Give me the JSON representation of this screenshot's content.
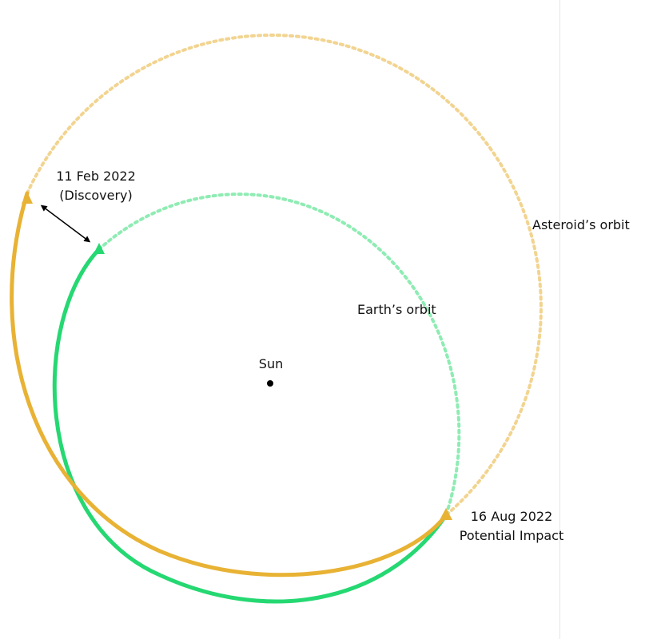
{
  "labels": {
    "discovery_date": "11 Feb 2022",
    "discovery_note": "(Discovery)",
    "asteroid_orbit": "Asteroid’s orbit",
    "earth_orbit": "Earth’s orbit",
    "sun": "Sun",
    "impact_date": "16 Aug 2022",
    "impact_note": "Potential Impact"
  },
  "colors": {
    "asteroid": "#e8b234",
    "asteroid_dotted": "#f2d490",
    "earth": "#25d872",
    "earth_dotted": "#8eecb3",
    "sun": "#000000",
    "arrow": "#000000",
    "divider": "#e6e6e6"
  }
}
